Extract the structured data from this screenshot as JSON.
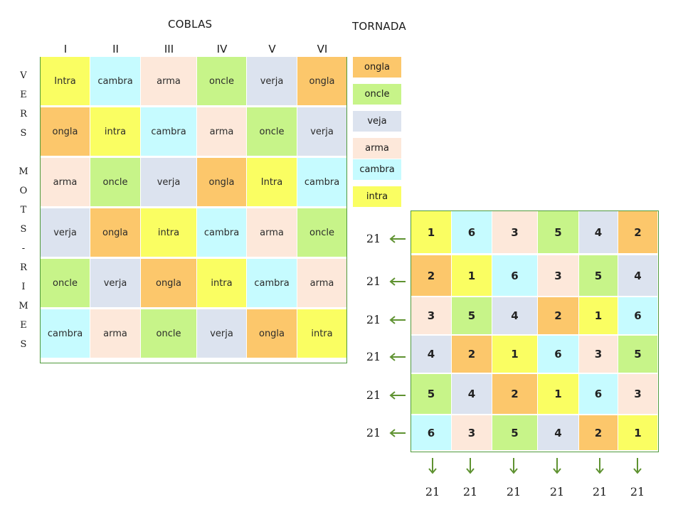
{
  "titles": {
    "coblas": "COBLAS",
    "tornada": "TORNADA"
  },
  "columns": [
    "I",
    "II",
    "III",
    "IV",
    "V",
    "VI"
  ],
  "side_label": [
    "V",
    "E",
    "R",
    "S",
    "",
    "M",
    "O",
    "T",
    "S",
    "-",
    "R",
    "I",
    "M",
    "E",
    "S"
  ],
  "colors": {
    "ongla": "#fcc76b",
    "oncle": "#c7f489",
    "verja": "#dce3ef",
    "veja": "#dce3ef",
    "arma": "#fde8da",
    "cambra": "#c6fbff",
    "intra": "#fafe62",
    "border": "#4f9a3b",
    "arrow": "#5f9231"
  },
  "coblas_grid": [
    [
      "Intra",
      "cambra",
      "arma",
      "oncle",
      "verja",
      "ongla"
    ],
    [
      "ongla",
      "intra",
      "cambra",
      "arma",
      "oncle",
      "verja"
    ],
    [
      "arma",
      "oncle",
      "verja",
      "ongla",
      "Intra",
      "cambra"
    ],
    [
      "verja",
      "ongla",
      "intra",
      "cambra",
      "arma",
      "oncle"
    ],
    [
      "oncle",
      "verja",
      "ongla",
      "intra",
      "cambra",
      "arma"
    ],
    [
      "cambra",
      "arma",
      "oncle",
      "verja",
      "ongla",
      "intra"
    ]
  ],
  "tornada": [
    "ongla",
    "oncle",
    "veja",
    "arma",
    "cambra",
    "intra"
  ],
  "number_grid": [
    [
      1,
      6,
      3,
      5,
      4,
      2
    ],
    [
      2,
      1,
      6,
      3,
      5,
      4
    ],
    [
      3,
      5,
      4,
      2,
      1,
      6
    ],
    [
      4,
      2,
      1,
      6,
      3,
      5
    ],
    [
      5,
      4,
      2,
      1,
      6,
      3
    ],
    [
      6,
      3,
      5,
      4,
      2,
      1
    ]
  ],
  "row_sums": [
    "21",
    "21",
    "21",
    "21",
    "21",
    "21"
  ],
  "col_sums": [
    "21",
    "21",
    "21",
    "21",
    "21",
    "21"
  ]
}
